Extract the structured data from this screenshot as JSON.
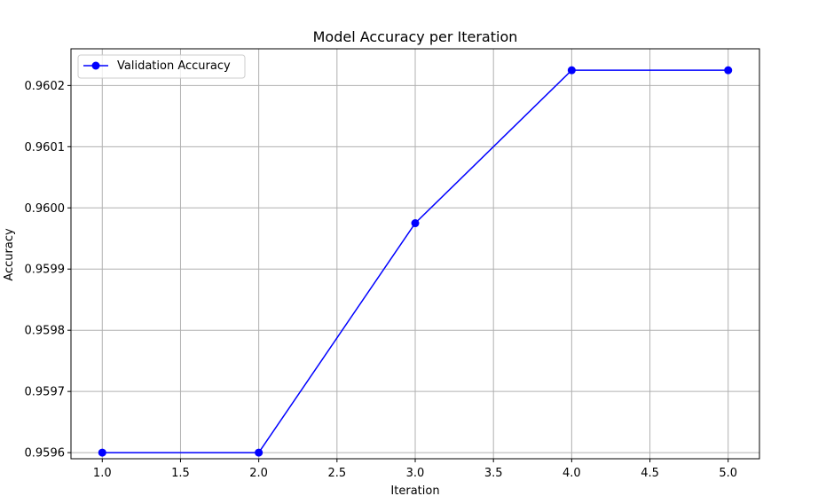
{
  "chart_data": {
    "type": "line",
    "title": "Model Accuracy per Iteration",
    "xlabel": "Iteration",
    "ylabel": "Accuracy",
    "xlim": [
      0.8,
      5.2
    ],
    "ylim": [
      0.95959,
      0.96026
    ],
    "xticks": [
      1.0,
      1.5,
      2.0,
      2.5,
      3.0,
      3.5,
      4.0,
      4.5,
      5.0
    ],
    "xtick_labels": [
      "1.0",
      "1.5",
      "2.0",
      "2.5",
      "3.0",
      "3.5",
      "4.0",
      "4.5",
      "5.0"
    ],
    "yticks": [
      0.9596,
      0.9597,
      0.9598,
      0.9599,
      0.96,
      0.9601,
      0.9602
    ],
    "ytick_labels": [
      "0.9596",
      "0.9597",
      "0.9598",
      "0.9599",
      "0.9600",
      "0.9601",
      "0.9602"
    ],
    "grid": true,
    "legend_position": "top-left",
    "series": [
      {
        "name": "Validation Accuracy",
        "color": "#0000ff",
        "marker": "circle",
        "x": [
          1,
          2,
          3,
          4,
          5
        ],
        "y": [
          0.9596,
          0.9596,
          0.959975,
          0.960225,
          0.960225
        ]
      }
    ]
  }
}
